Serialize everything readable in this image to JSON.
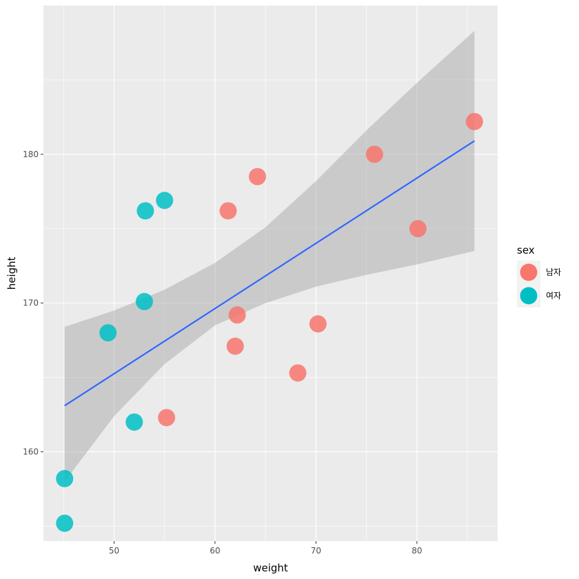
{
  "chart_data": {
    "type": "scatter",
    "title": "",
    "xlabel": "weight",
    "ylabel": "height",
    "xlim": [
      43,
      88
    ],
    "ylim": [
      154,
      190
    ],
    "x_ticks": [
      50,
      60,
      70,
      80
    ],
    "y_ticks": [
      160,
      170,
      180
    ],
    "x_tick_labels": [
      "50",
      "60",
      "70",
      "80"
    ],
    "y_tick_labels": [
      "160",
      "170",
      "180"
    ],
    "grid": true,
    "legend": {
      "title": "sex",
      "position": "right",
      "entries": [
        "남자",
        "여자"
      ]
    },
    "colors": {
      "남자": "#F8766D",
      "여자": "#00BFC4",
      "smooth_line": "#3366FF",
      "ribbon": "#999999",
      "panel": "#EBEBEB",
      "grid": "#FFFFFF"
    },
    "series": [
      {
        "name": "남자",
        "points": [
          {
            "x": 61.3,
            "y": 176.2
          },
          {
            "x": 64.2,
            "y": 178.5
          },
          {
            "x": 75.8,
            "y": 180.0
          },
          {
            "x": 85.7,
            "y": 182.2
          },
          {
            "x": 80.1,
            "y": 175.0
          },
          {
            "x": 62.2,
            "y": 169.2
          },
          {
            "x": 62.0,
            "y": 167.1
          },
          {
            "x": 70.2,
            "y": 168.6
          },
          {
            "x": 68.2,
            "y": 165.3
          },
          {
            "x": 55.2,
            "y": 162.3
          }
        ]
      },
      {
        "name": "여자",
        "points": [
          {
            "x": 55.0,
            "y": 176.9
          },
          {
            "x": 53.1,
            "y": 176.2
          },
          {
            "x": 53.0,
            "y": 170.1
          },
          {
            "x": 49.4,
            "y": 168.0
          },
          {
            "x": 52.0,
            "y": 162.0
          },
          {
            "x": 45.1,
            "y": 158.2
          },
          {
            "x": 45.1,
            "y": 155.2
          }
        ]
      }
    ],
    "smooth": {
      "method": "lm",
      "x": [
        45.1,
        85.7
      ],
      "fit": [
        163.1,
        180.9
      ],
      "lower": [
        158.0,
        173.5
      ],
      "upper": [
        168.4,
        188.3
      ],
      "se_curve_x": [
        45.1,
        50,
        55,
        60,
        65,
        70,
        75,
        80,
        85.7
      ],
      "se_curve_lower": [
        158.0,
        162.4,
        165.9,
        168.5,
        170.0,
        171.1,
        171.9,
        172.6,
        173.5
      ],
      "se_curve_upper": [
        168.4,
        169.5,
        170.9,
        172.7,
        175.1,
        178.2,
        181.6,
        184.8,
        188.3
      ]
    }
  }
}
